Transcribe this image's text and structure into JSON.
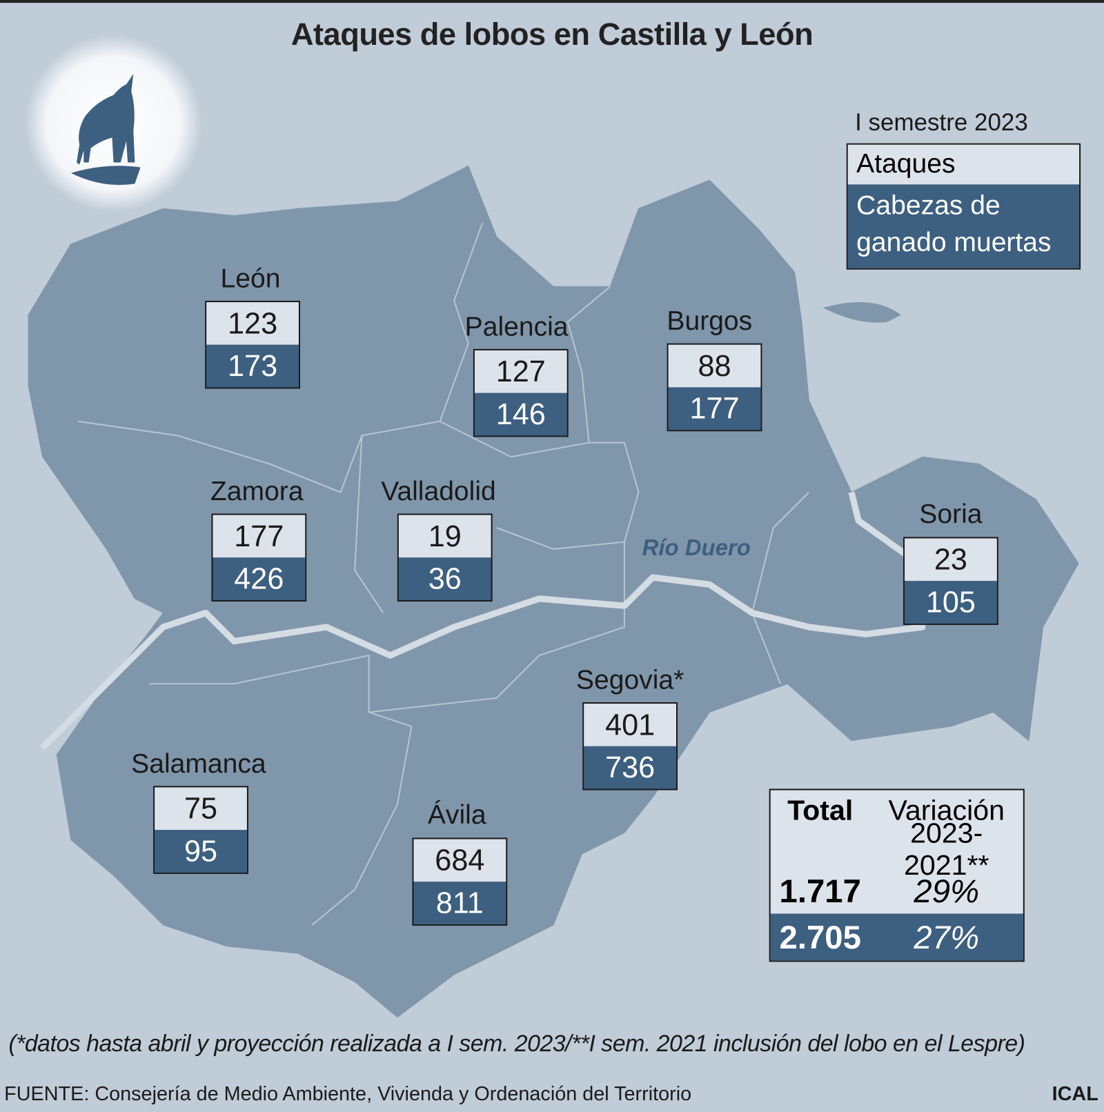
{
  "title": "Ataques de lobos en Castilla y León",
  "legend": {
    "period": "I semestre 2023",
    "attacks_label": "Ataques",
    "livestock_label": "Cabezas de ganado muertas"
  },
  "colors": {
    "background": "#c0ccd8",
    "map": "#8096ab",
    "attacks_box": "#dde3ea",
    "livestock_box": "#3d5f80",
    "river": "#d4dce4"
  },
  "icon": "howling-wolf-icon",
  "river_label": "Río Duero",
  "provinces": [
    {
      "name": "León",
      "attacks": "123",
      "livestock": "173"
    },
    {
      "name": "Palencia",
      "attacks": "127",
      "livestock": "146"
    },
    {
      "name": "Burgos",
      "attacks": "88",
      "livestock": "177"
    },
    {
      "name": "Zamora",
      "attacks": "177",
      "livestock": "426"
    },
    {
      "name": "Valladolid",
      "attacks": "19",
      "livestock": "36"
    },
    {
      "name": "Soria",
      "attacks": "23",
      "livestock": "105"
    },
    {
      "name": "Segovia*",
      "attacks": "401",
      "livestock": "736"
    },
    {
      "name": "Salamanca",
      "attacks": "75",
      "livestock": "95"
    },
    {
      "name": "Ávila",
      "attacks": "684",
      "livestock": "811"
    }
  ],
  "totals": {
    "total_header": "Total",
    "variation_header_1": "Variación",
    "variation_header_2": "2023-2021**",
    "attacks_total": "1.717",
    "attacks_variation": "29%",
    "livestock_total": "2.705",
    "livestock_variation": "27%"
  },
  "note": "(*datos hasta abril y proyección realizada a I sem. 2023/**I sem. 2021 inclusión del lobo en el Lespre)",
  "source": "FUENTE: Consejería de Medio Ambiente, Vivienda y Ordenación del Territorio",
  "credit": "ICAL"
}
